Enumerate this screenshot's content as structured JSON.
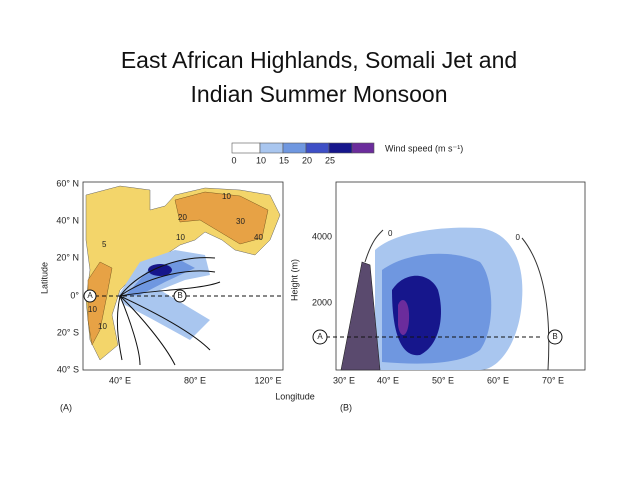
{
  "title": {
    "lines": [
      "East African Highlands, Somali Jet and",
      "Indian Summer Monsoon"
    ]
  },
  "colorbar": {
    "labels": [
      "0",
      "10",
      "15",
      "20",
      "25"
    ],
    "caption": "Wind speed (m s⁻¹)"
  },
  "panel_a": {
    "lat_labels": [
      "60° N",
      "40° N",
      "20° N",
      "0°",
      "20° S",
      "40° S"
    ],
    "lon_labels": [
      "40° E",
      "80° E",
      "120° E"
    ],
    "y_title": "Latitude",
    "x_title": "Longitude",
    "tag": "(A)",
    "contour_labels": [
      "10",
      "20",
      "30",
      "40",
      "10",
      "5",
      "10",
      "10"
    ],
    "points": [
      "A",
      "B"
    ]
  },
  "panel_b": {
    "height_labels": [
      "4000",
      "2000"
    ],
    "y_title": "Height (m)",
    "lon_labels": [
      "30° E",
      "40° E",
      "50° E",
      "60° E",
      "70° E"
    ],
    "tag": "(B)",
    "contour_labels": [
      "0",
      "0"
    ],
    "points": [
      "A",
      "B"
    ]
  }
}
